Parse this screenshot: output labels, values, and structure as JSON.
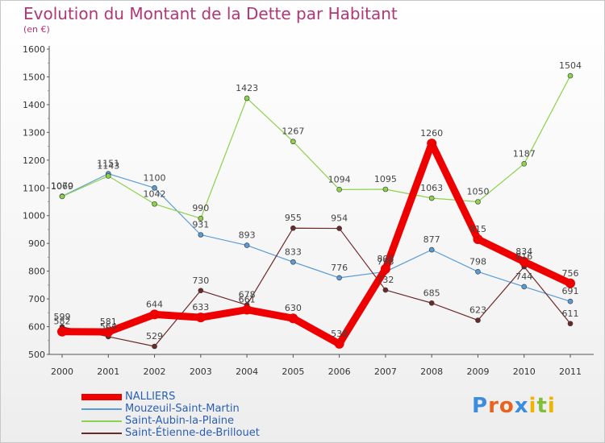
{
  "header": {
    "title": "Evolution du Montant de la Dette par Habitant",
    "unit": "(en €)"
  },
  "logo": {
    "text": "Proxiti",
    "letters": [
      {
        "ch": "P",
        "color": "#3c8de0"
      },
      {
        "ch": "r",
        "color": "#e8641e"
      },
      {
        "ch": "o",
        "color": "#e8641e"
      },
      {
        "ch": "x",
        "color": "#3c8de0"
      },
      {
        "ch": "i",
        "color": "#f0b400"
      },
      {
        "ch": "t",
        "color": "#7fbf3a"
      },
      {
        "ch": "i",
        "color": "#f0b400"
      }
    ]
  },
  "chart_data": {
    "type": "line",
    "title": "Evolution du Montant de la Dette par Habitant",
    "ylabel": "(en €)",
    "xlabel": "",
    "x": [
      "2000",
      "2001",
      "2002",
      "2003",
      "2004",
      "2005",
      "2006",
      "2007",
      "2008",
      "2009",
      "2010",
      "2011"
    ],
    "ylim": [
      500,
      1600
    ],
    "yticks": [
      500,
      600,
      700,
      800,
      900,
      1000,
      1100,
      1200,
      1300,
      1400,
      1500,
      1600
    ],
    "grid": false,
    "legend_position": "bottom-left",
    "series": [
      {
        "name": "NALLIERS",
        "color": "#ee0000",
        "thick": true,
        "values": [
          582,
          581,
          644,
          633,
          661,
          630,
          538,
          808,
          1260,
          915,
          834,
          756
        ],
        "labels": [
          "582",
          "581",
          "644",
          "633",
          "661",
          "630",
          "538",
          "808",
          "1260",
          "915",
          "834",
          "756"
        ]
      },
      {
        "name": "Mouzeuil-Saint-Martin",
        "color": "#5b9bd5",
        "thick": false,
        "values": [
          1070,
          1151,
          1100,
          931,
          893,
          833,
          776,
          798,
          877,
          798,
          744,
          691
        ],
        "labels": [
          "1070",
          "1151",
          "1100",
          "931",
          "893",
          "833",
          "776",
          "798",
          "877",
          "798",
          "744",
          "691"
        ]
      },
      {
        "name": "Saint-Aubin-la-Plaine",
        "color": "#8cd24a",
        "thick": false,
        "values": [
          1069,
          1143,
          1042,
          990,
          1423,
          1267,
          1094,
          1095,
          1063,
          1050,
          1187,
          1504
        ],
        "labels": [
          "1069",
          "1143",
          "1042",
          "990",
          "1423",
          "1267",
          "1094",
          "1095",
          "1063",
          "1050",
          "1187",
          "1504"
        ]
      },
      {
        "name": "Saint-Étienne-de-Brillouet",
        "color": "#6b2a2a",
        "thick": false,
        "values": [
          599,
          564,
          529,
          730,
          678,
          955,
          954,
          732,
          685,
          623,
          816,
          611
        ],
        "labels": [
          "599",
          "564",
          "529",
          "730",
          "678",
          "955",
          "954",
          "732",
          "685",
          "623",
          "816",
          "611"
        ]
      }
    ]
  }
}
